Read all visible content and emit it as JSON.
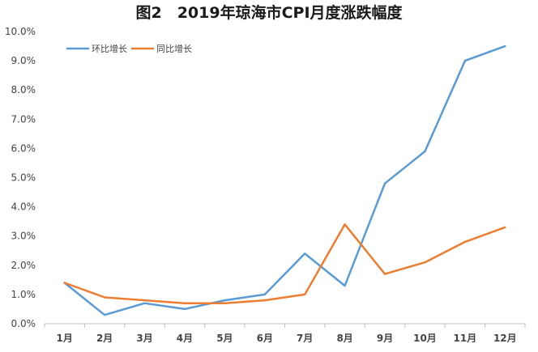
{
  "chart_data": {
    "type": "line",
    "title": "图2　2019年琼海市CPI月度涨跌幅度",
    "categories": [
      "1月",
      "2月",
      "3月",
      "4月",
      "5月",
      "6月",
      "7月",
      "8月",
      "9月",
      "10月",
      "11月",
      "12月"
    ],
    "series": [
      {
        "name": "环比增长",
        "color": "#5b9bd5",
        "values": [
          1.4,
          0.3,
          0.7,
          0.5,
          0.8,
          1.0,
          2.4,
          1.3,
          4.8,
          5.9,
          9.0,
          9.5
        ]
      },
      {
        "name": "同比增长",
        "color": "#ed7d31",
        "values": [
          1.4,
          0.9,
          0.8,
          0.7,
          0.7,
          0.8,
          1.0,
          3.4,
          1.7,
          2.1,
          2.8,
          3.3
        ]
      }
    ],
    "ylim": [
      0,
      10
    ],
    "ytick_labels": [
      "0.0%",
      "1.0%",
      "2.0%",
      "3.0%",
      "4.0%",
      "5.0%",
      "6.0%",
      "7.0%",
      "8.0%",
      "9.0%",
      "10.0%"
    ],
    "xlabel": "",
    "ylabel": "",
    "grid": false,
    "legend": "top-left"
  }
}
